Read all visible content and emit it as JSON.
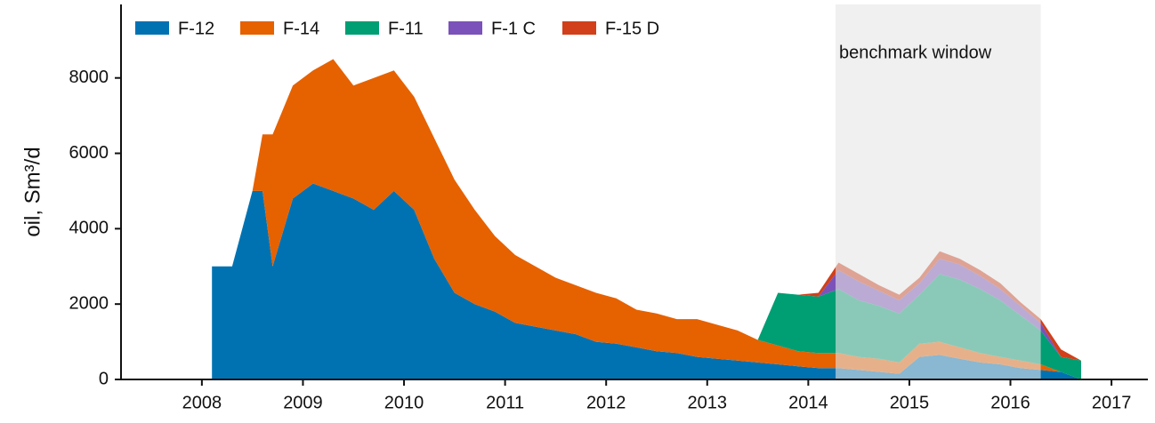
{
  "chart_data": {
    "type": "stacked_area",
    "y_label": "oil, Sm³/d",
    "xlim": [
      2007.2,
      2017.36
    ],
    "xticks": [
      2008,
      2009,
      2010,
      2011,
      2012,
      2013,
      2014,
      2015,
      2016,
      2017
    ],
    "ylim": [
      0,
      9950
    ],
    "yticks": [
      0,
      2000,
      4000,
      6000,
      8000
    ],
    "grid": false,
    "legend": "top-left",
    "shaded_region": {
      "label": "benchmark window",
      "xlim": [
        2014.27,
        2016.3
      ],
      "color": "#e6e6e6"
    },
    "x": [
      2008.1,
      2008.3,
      2008.5,
      2008.6,
      2008.7,
      2008.9,
      2009.1,
      2009.3,
      2009.5,
      2009.7,
      2009.9,
      2010.1,
      2010.3,
      2010.5,
      2010.7,
      2010.9,
      2011.1,
      2011.3,
      2011.5,
      2011.7,
      2011.9,
      2012.1,
      2012.3,
      2012.5,
      2012.7,
      2012.9,
      2013.1,
      2013.3,
      2013.5,
      2013.7,
      2013.9,
      2014.1,
      2014.3,
      2014.5,
      2014.7,
      2014.9,
      2015.1,
      2015.3,
      2015.5,
      2015.7,
      2015.9,
      2016.1,
      2016.3,
      2016.5,
      2016.7
    ],
    "series": [
      {
        "name": "F-12",
        "color": "#0072b2",
        "values": [
          3000,
          3000,
          5000,
          5000,
          3000,
          4800,
          5200,
          5000,
          4800,
          4500,
          5000,
          4500,
          3200,
          2300,
          2000,
          1800,
          1500,
          1400,
          1300,
          1200,
          1000,
          950,
          850,
          750,
          700,
          600,
          550,
          500,
          450,
          400,
          350,
          300,
          300,
          250,
          200,
          150,
          600,
          650,
          550,
          450,
          400,
          300,
          250,
          200,
          0
        ]
      },
      {
        "name": "F-14",
        "color": "#e66100",
        "values": [
          0,
          0,
          0,
          1500,
          3500,
          3000,
          3000,
          3500,
          3000,
          3500,
          3200,
          3000,
          3200,
          3000,
          2500,
          2000,
          1800,
          1600,
          1400,
          1300,
          1300,
          1200,
          1000,
          1000,
          900,
          1000,
          900,
          800,
          600,
          500,
          400,
          400,
          400,
          350,
          350,
          300,
          350,
          350,
          300,
          250,
          200,
          200,
          150,
          0,
          0
        ]
      },
      {
        "name": "F-11",
        "color": "#009e73",
        "values": [
          0,
          0,
          0,
          0,
          0,
          0,
          0,
          0,
          0,
          0,
          0,
          0,
          0,
          0,
          0,
          0,
          0,
          0,
          0,
          0,
          0,
          0,
          0,
          0,
          0,
          0,
          0,
          0,
          0,
          1400,
          1500,
          1500,
          1700,
          1500,
          1400,
          1300,
          1300,
          1800,
          1800,
          1700,
          1500,
          1200,
          900,
          400,
          500
        ]
      },
      {
        "name": "F-1 C",
        "color": "#7b52b9",
        "values": [
          0,
          0,
          0,
          0,
          0,
          0,
          0,
          0,
          0,
          0,
          0,
          0,
          0,
          0,
          0,
          0,
          0,
          0,
          0,
          0,
          0,
          0,
          0,
          0,
          0,
          0,
          0,
          0,
          0,
          0,
          0,
          0,
          500,
          500,
          400,
          350,
          300,
          400,
          400,
          350,
          300,
          250,
          200,
          0,
          0
        ]
      },
      {
        "name": "F-15 D",
        "color": "#d1401a",
        "values": [
          0,
          0,
          0,
          0,
          0,
          0,
          0,
          0,
          0,
          0,
          0,
          0,
          0,
          0,
          0,
          0,
          0,
          0,
          0,
          0,
          0,
          0,
          0,
          0,
          0,
          0,
          0,
          0,
          0,
          0,
          0,
          100,
          200,
          200,
          150,
          150,
          150,
          200,
          150,
          150,
          150,
          100,
          100,
          200,
          0
        ]
      }
    ]
  }
}
